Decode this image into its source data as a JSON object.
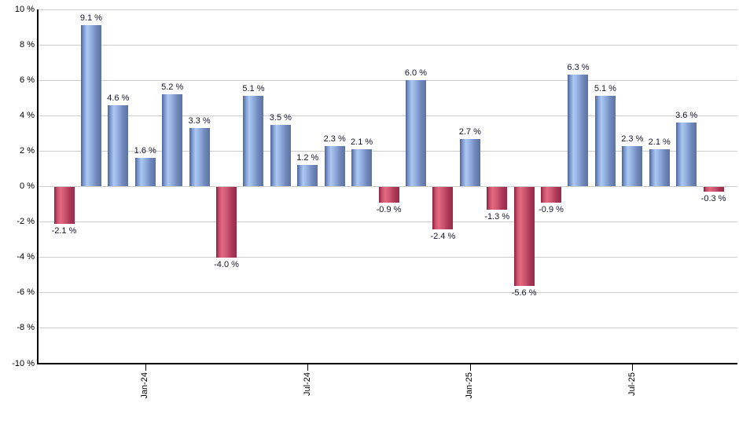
{
  "chart_data": {
    "type": "bar",
    "title": "",
    "xlabel": "",
    "ylabel": "",
    "values": [
      -2.1,
      9.1,
      4.6,
      1.6,
      5.2,
      3.3,
      -4.0,
      5.1,
      3.5,
      1.2,
      2.3,
      2.1,
      -0.9,
      6.0,
      -2.4,
      2.7,
      -1.3,
      -5.6,
      -0.9,
      6.3,
      5.1,
      2.3,
      2.1,
      3.6,
      -0.3
    ],
    "value_labels": [
      "-2.1 %",
      "9.1 %",
      "4.6 %",
      "1.6 %",
      "5.2 %",
      "3.3 %",
      "-4.0 %",
      "5.1 %",
      "3.5 %",
      "1.2 %",
      "2.3 %",
      "2.1 %",
      "-0.9 %",
      "6.0 %",
      "-2.4 %",
      "2.7 %",
      "-1.3 %",
      "-5.6 %",
      "-0.9 %",
      "6.3 %",
      "5.1 %",
      "2.3 %",
      "2.1 %",
      "3.6 %",
      "-0.3 %"
    ],
    "x_ticks": [
      {
        "index": 3,
        "label": "Jan-24"
      },
      {
        "index": 9,
        "label": "Jul-24"
      },
      {
        "index": 15,
        "label": "Jan-25"
      },
      {
        "index": 21,
        "label": "Jul-25"
      }
    ],
    "y_axis": {
      "min": -10,
      "max": 10,
      "step": 2,
      "tick_labels": [
        "10 %",
        "8 %",
        "6 %",
        "4 %",
        "2 %",
        "0 %",
        "-2 %",
        "-4 %",
        "-6 %",
        "-8 %",
        "-10 %"
      ]
    },
    "grid": true,
    "legend": false,
    "colors": {
      "positive_bar_highlight": "#abc9f3",
      "positive_bar_edge": "#4e6398",
      "negative_bar_highlight": "#e5697f",
      "negative_bar_edge": "#8a1f3d",
      "gridline": "#cccccc",
      "axis": "#000000",
      "value_label": "#16162e",
      "tick_label": "#000000",
      "background": "#ffffff"
    }
  }
}
